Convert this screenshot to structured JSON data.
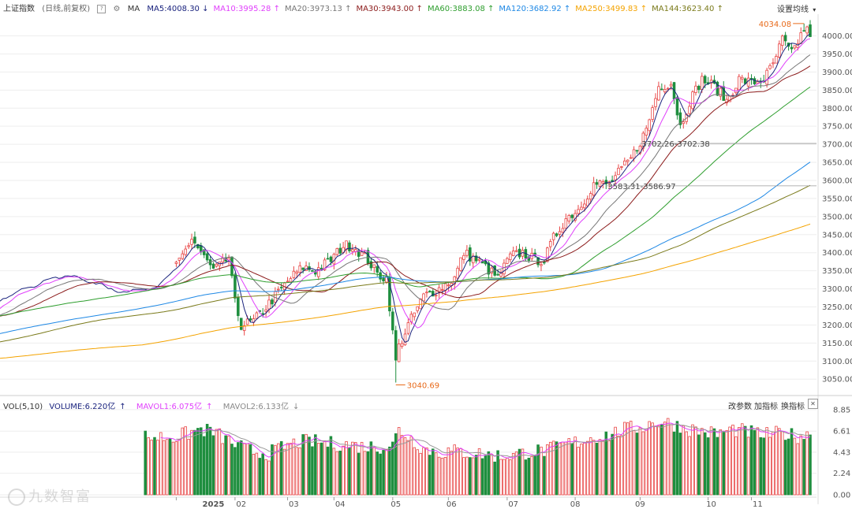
{
  "header": {
    "index_name": "上证指数",
    "mode": "(日线,前复权)",
    "ma_label": "MA",
    "settings_label": "设置均线",
    "dropdown_glyph": "▾"
  },
  "ma_legend": [
    {
      "label": "MA5:4008.30",
      "arrow": "↓",
      "color": "#1a237e"
    },
    {
      "label": "MA10:3995.28",
      "arrow": "↑",
      "color": "#e040fb"
    },
    {
      "label": "MA20:3973.13",
      "arrow": "↑",
      "color": "#777777"
    },
    {
      "label": "MA30:3943.00",
      "arrow": "↑",
      "color": "#8b1a1a"
    },
    {
      "label": "MA60:3883.08",
      "arrow": "↑",
      "color": "#2e9e2e"
    },
    {
      "label": "MA120:3682.92",
      "arrow": "↑",
      "color": "#1e88e5"
    },
    {
      "label": "MA250:3499.83",
      "arrow": "↑",
      "color": "#f4a300"
    },
    {
      "label": "MA144:3623.40",
      "arrow": "↑",
      "color": "#7a7a1a"
    }
  ],
  "volume_legend": {
    "vol": "VOL(5,10)",
    "volume": "VOLUME:6.220亿",
    "volume_arrow": "↑",
    "mavol1": "MAVOL1:6.075亿",
    "mavol1_arrow": "↑",
    "mavol2": "MAVOL2:6.133亿",
    "mavol2_arrow": "↓",
    "buttons": [
      "改参数",
      "加指标",
      "换指标"
    ],
    "close_glyph": "✕"
  },
  "watermark": "九数智富",
  "colors": {
    "up": "#e84545",
    "down": "#1e8e3e",
    "bg": "#ffffff",
    "grid": "#eeeeee",
    "axis_text": "#555555"
  },
  "chart_data": [
    {
      "type": "candlestick",
      "title": "上证指数 (日线,前复权)",
      "ylim": [
        3020,
        4060
      ],
      "y_ticks": [
        3050,
        3100,
        3150,
        3200,
        3250,
        3300,
        3350,
        3400,
        3450,
        3500,
        3550,
        3600,
        3650,
        3700,
        3750,
        3800,
        3850,
        3900,
        3950,
        4000
      ],
      "x_tick_labels": [
        "2025",
        "02",
        "03",
        "04",
        "05",
        "06",
        "07",
        "08",
        "09",
        "10",
        "11"
      ],
      "x_tick_days": [
        12,
        21,
        38,
        53,
        71,
        89,
        109,
        129,
        150,
        173,
        188
      ],
      "month_starts_by_day": [
        0,
        19,
        36,
        51,
        70,
        88,
        107,
        129,
        150,
        172,
        186
      ],
      "n_days": 206,
      "close_waypoints": [
        [
          0,
          3360
        ],
        [
          5,
          3440
        ],
        [
          8,
          3400
        ],
        [
          12,
          3350
        ],
        [
          17,
          3385
        ],
        [
          19,
          3260
        ],
        [
          21,
          3200
        ],
        [
          25,
          3210
        ],
        [
          29,
          3250
        ],
        [
          33,
          3290
        ],
        [
          37,
          3330
        ],
        [
          41,
          3360
        ],
        [
          45,
          3350
        ],
        [
          50,
          3380
        ],
        [
          54,
          3420
        ],
        [
          57,
          3420
        ],
        [
          62,
          3380
        ],
        [
          65,
          3340
        ],
        [
          68,
          3330
        ],
        [
          71,
          3100
        ],
        [
          72,
          3140
        ],
        [
          75,
          3200
        ],
        [
          80,
          3280
        ],
        [
          85,
          3300
        ],
        [
          90,
          3330
        ],
        [
          93,
          3400
        ],
        [
          97,
          3380
        ],
        [
          100,
          3360
        ],
        [
          104,
          3330
        ],
        [
          108,
          3390
        ],
        [
          112,
          3400
        ],
        [
          116,
          3380
        ],
        [
          119,
          3380
        ],
        [
          122,
          3440
        ],
        [
          126,
          3495
        ],
        [
          130,
          3520
        ],
        [
          135,
          3590
        ],
        [
          140,
          3590
        ],
        [
          143,
          3620
        ],
        [
          147,
          3660
        ],
        [
          152,
          3740
        ],
        [
          156,
          3860
        ],
        [
          160,
          3870
        ],
        [
          163,
          3750
        ],
        [
          166,
          3820
        ],
        [
          170,
          3880
        ],
        [
          174,
          3860
        ],
        [
          178,
          3820
        ],
        [
          182,
          3880
        ],
        [
          186,
          3870
        ],
        [
          190,
          3880
        ],
        [
          193,
          3920
        ],
        [
          196,
          3990
        ],
        [
          199,
          3950
        ],
        [
          203,
          4020
        ],
        [
          205,
          4008
        ]
      ],
      "ma_series": [
        {
          "name": "MA5",
          "period": 5,
          "color": "#1a237e"
        },
        {
          "name": "MA10",
          "period": 10,
          "color": "#e040fb"
        },
        {
          "name": "MA20",
          "period": 20,
          "color": "#777777"
        },
        {
          "name": "MA30",
          "period": 30,
          "color": "#8b1a1a"
        },
        {
          "name": "MA60",
          "period": 60,
          "color": "#2e9e2e"
        },
        {
          "name": "MA120",
          "period": 120,
          "color": "#1e88e5"
        },
        {
          "name": "MA250",
          "period": 250,
          "color": "#f4a300"
        },
        {
          "name": "MA144",
          "period": 144,
          "color": "#7a7a1a"
        }
      ],
      "reference_levels": [
        {
          "label": "3702.26-3702.38",
          "value": 3702.3,
          "from_day": 150
        },
        {
          "label": "3583.31-3586.97",
          "value": 3585.0,
          "from_day": 139
        }
      ],
      "annotations": [
        {
          "label": "4034.08",
          "day": 203,
          "value": 4034.08,
          "position": "left"
        },
        {
          "label": "3040.69",
          "day": 71,
          "value": 3040.69,
          "position": "right"
        }
      ]
    },
    {
      "type": "bar",
      "title": "VOL(5,10)",
      "unit": "亿",
      "ylim": [
        0,
        9.0
      ],
      "y_ticks": [
        0.0,
        2.24,
        4.43,
        6.61,
        8.85
      ],
      "volume_waypoints": [
        [
          0,
          6.0
        ],
        [
          8,
          6.8
        ],
        [
          12,
          6.5
        ],
        [
          17,
          5.6
        ],
        [
          20,
          5.0
        ],
        [
          25,
          4.5
        ],
        [
          30,
          4.3
        ],
        [
          35,
          5.0
        ],
        [
          40,
          5.5
        ],
        [
          45,
          5.5
        ],
        [
          50,
          5.3
        ],
        [
          56,
          5.2
        ],
        [
          60,
          5.0
        ],
        [
          66,
          5.0
        ],
        [
          70,
          5.2
        ],
        [
          72,
          6.8
        ],
        [
          76,
          5.8
        ],
        [
          80,
          4.8
        ],
        [
          85,
          4.4
        ],
        [
          90,
          4.5
        ],
        [
          100,
          4.2
        ],
        [
          105,
          4.0
        ],
        [
          110,
          4.2
        ],
        [
          115,
          4.5
        ],
        [
          120,
          4.6
        ],
        [
          125,
          5.2
        ],
        [
          130,
          5.5
        ],
        [
          135,
          6.0
        ],
        [
          140,
          6.2
        ],
        [
          145,
          6.8
        ],
        [
          150,
          7.0
        ],
        [
          155,
          7.6
        ],
        [
          160,
          7.4
        ],
        [
          165,
          6.9
        ],
        [
          170,
          6.6
        ],
        [
          175,
          6.3
        ],
        [
          180,
          6.8
        ],
        [
          185,
          6.5
        ],
        [
          190,
          6.2
        ],
        [
          196,
          6.4
        ],
        [
          200,
          6.1
        ],
        [
          205,
          6.22
        ]
      ],
      "series": [
        {
          "name": "MAVOL1",
          "period": 5,
          "value": 6.075,
          "color": "#e040fb"
        },
        {
          "name": "MAVOL2",
          "period": 10,
          "value": 6.133,
          "color": "#999999"
        }
      ]
    }
  ]
}
